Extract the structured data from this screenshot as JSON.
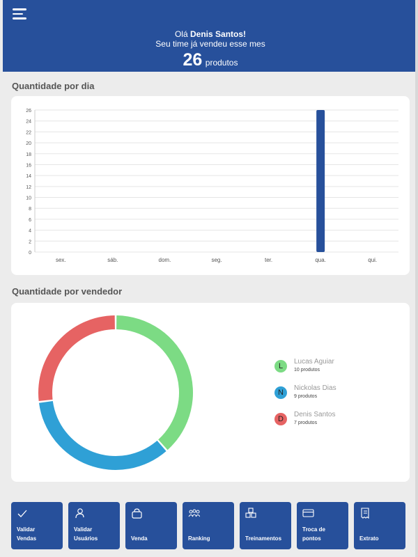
{
  "header": {
    "greeting_prefix": "Olá",
    "user_name": "Denis Santos!",
    "subtitle": "Seu time já vendeu esse mes",
    "total_count": "26",
    "total_unit": "produtos"
  },
  "daily_section": {
    "title": "Quantidade por dia"
  },
  "seller_section": {
    "title": "Quantidade por vendedor"
  },
  "chart_data": [
    {
      "type": "bar",
      "categories": [
        "sex.",
        "sáb.",
        "dom.",
        "seg.",
        "ter.",
        "qua.",
        "qui."
      ],
      "values": [
        0,
        0,
        0,
        0,
        0,
        26,
        0
      ],
      "ylim": [
        0,
        26
      ],
      "yticks": [
        0,
        2,
        4,
        6,
        8,
        10,
        12,
        14,
        16,
        18,
        20,
        22,
        24,
        26
      ],
      "bar_color": "#27509b",
      "grid": true
    },
    {
      "type": "pie",
      "variant": "donut",
      "series": [
        {
          "name": "Lucas Aguiar",
          "value": 10,
          "color": "#7cdb84"
        },
        {
          "name": "Nickolas Dias",
          "value": 9,
          "color": "#2fa0d6"
        },
        {
          "name": "Denis Santos",
          "value": 7,
          "color": "#e66363"
        }
      ],
      "legend_position": "right"
    }
  ],
  "legend": [
    {
      "initial": "L",
      "name": "Lucas Aguiar",
      "count": "10 produtos",
      "color": "#7cdb84"
    },
    {
      "initial": "N",
      "name": "Nickolas Dias",
      "count": "9 produtos",
      "color": "#2fa0d6"
    },
    {
      "initial": "D",
      "name": "Denis Santos",
      "count": "7 produtos",
      "color": "#e66363"
    }
  ],
  "actions": [
    {
      "line1": "Validar",
      "line2": "Vendas",
      "icon": "check-icon"
    },
    {
      "line1": "Validar",
      "line2": "Usuários",
      "icon": "user-icon"
    },
    {
      "line1": "Venda",
      "line2": "",
      "icon": "bag-icon"
    },
    {
      "line1": "Ranking",
      "line2": "",
      "icon": "group-icon"
    },
    {
      "line1": "Treinamentos",
      "line2": "",
      "icon": "boxes-icon"
    },
    {
      "line1": "Troca de",
      "line2": "pontos",
      "icon": "card-icon"
    },
    {
      "line1": "Extrato",
      "line2": "",
      "icon": "receipt-icon"
    }
  ],
  "colors": {
    "primary": "#27509b",
    "background": "#ececec"
  }
}
